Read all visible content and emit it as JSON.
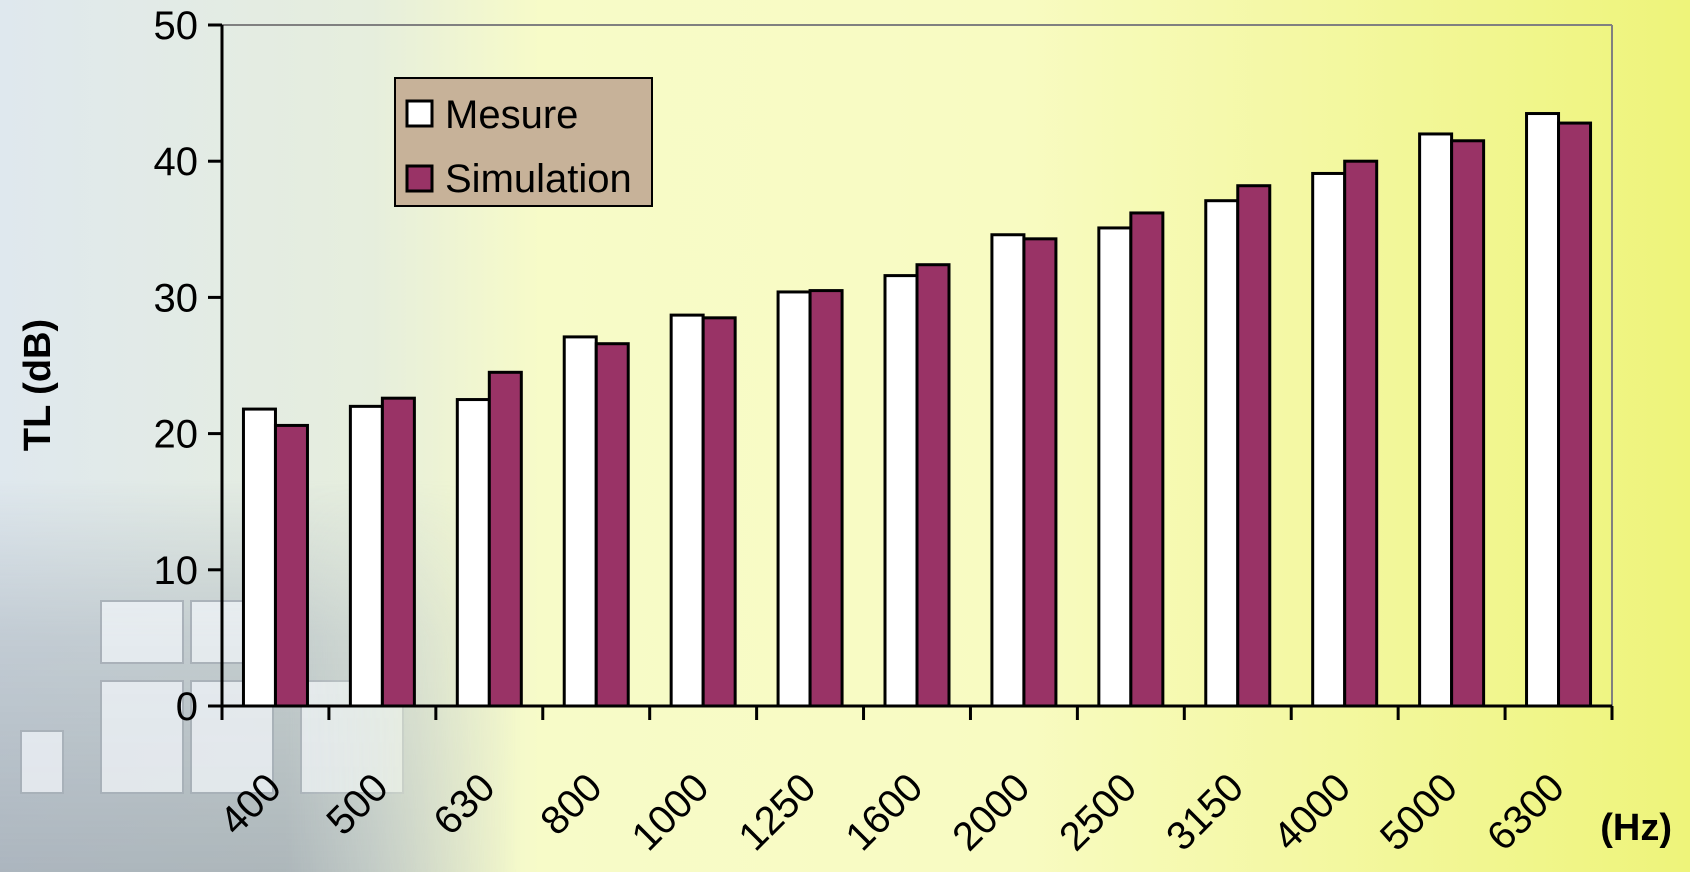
{
  "chart_data": {
    "type": "bar",
    "title": "",
    "ylabel": "TL (dB)",
    "xlabel": "(Hz)",
    "ylim": [
      0,
      50
    ],
    "yticks": [
      0,
      10,
      20,
      30,
      40,
      50
    ],
    "categories": [
      "400",
      "500",
      "630",
      "800",
      "1000",
      "1250",
      "1600",
      "2000",
      "2500",
      "3150",
      "4000",
      "5000",
      "6300"
    ],
    "series": [
      {
        "name": "Mesure",
        "color": "#ffffff",
        "values": [
          21.8,
          22.0,
          22.5,
          27.1,
          28.7,
          30.4,
          31.6,
          34.6,
          35.1,
          37.1,
          39.1,
          42.0,
          43.5
        ]
      },
      {
        "name": "Simulation",
        "color": "#993366",
        "values": [
          20.6,
          22.6,
          24.5,
          26.6,
          28.5,
          30.5,
          32.4,
          34.3,
          36.2,
          38.2,
          40.0,
          41.5,
          42.8
        ]
      }
    ],
    "legend_position": "top-left",
    "grid": false
  }
}
